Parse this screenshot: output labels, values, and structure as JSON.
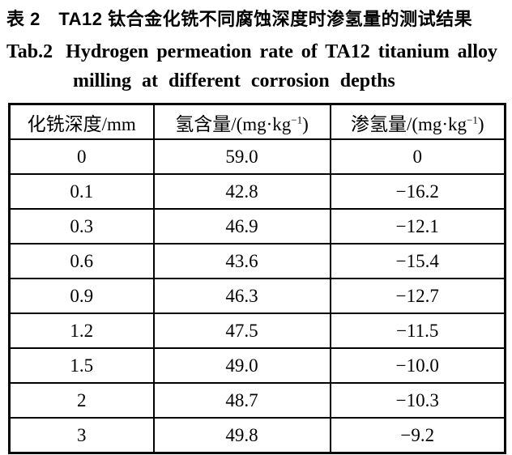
{
  "caption": {
    "zh": "表 2　TA12 钛合金化铣不同腐蚀深度时渗氢量的测试结果",
    "en_label": "Tab.2",
    "en_line1": "Hydrogen permeation rate of TA12 titanium alloy",
    "en_line2": "milling at different corrosion depths"
  },
  "table": {
    "columns": [
      {
        "label": "化铣深度/mm"
      },
      {
        "pre": "氢含量/(mg·kg",
        "sup": "−1",
        "post": ")"
      },
      {
        "pre": "渗氢量/(mg·kg",
        "sup": "−1",
        "post": ")"
      }
    ],
    "rows": [
      [
        "0",
        "59.0",
        "0"
      ],
      [
        "0.1",
        "42.8",
        "−16.2"
      ],
      [
        "0.3",
        "46.9",
        "−12.1"
      ],
      [
        "0.6",
        "43.6",
        "−15.4"
      ],
      [
        "0.9",
        "46.3",
        "−12.7"
      ],
      [
        "1.2",
        "47.5",
        "−11.5"
      ],
      [
        "1.5",
        "49.0",
        "−10.0"
      ],
      [
        "2",
        "48.7",
        "−10.3"
      ],
      [
        "3",
        "49.8",
        "−9.2"
      ]
    ]
  },
  "colors": {
    "text": "#000000",
    "background": "#ffffff",
    "border": "#000000"
  },
  "chart_data": {
    "type": "table",
    "title": "表 2 TA12 钛合金化铣不同腐蚀深度时渗氢量的测试结果 / Tab.2 Hydrogen permeation rate of TA12 titanium alloy milling at different corrosion depths",
    "columns": [
      "化铣深度/mm",
      "氢含量/(mg·kg⁻¹)",
      "渗氢量/(mg·kg⁻¹)"
    ],
    "rows": [
      [
        0,
        59.0,
        0
      ],
      [
        0.1,
        42.8,
        -16.2
      ],
      [
        0.3,
        46.9,
        -12.1
      ],
      [
        0.6,
        43.6,
        -15.4
      ],
      [
        0.9,
        46.3,
        -12.7
      ],
      [
        1.2,
        47.5,
        -11.5
      ],
      [
        1.5,
        49.0,
        -10.0
      ],
      [
        2,
        48.7,
        -10.3
      ],
      [
        3,
        49.8,
        -9.2
      ]
    ]
  }
}
